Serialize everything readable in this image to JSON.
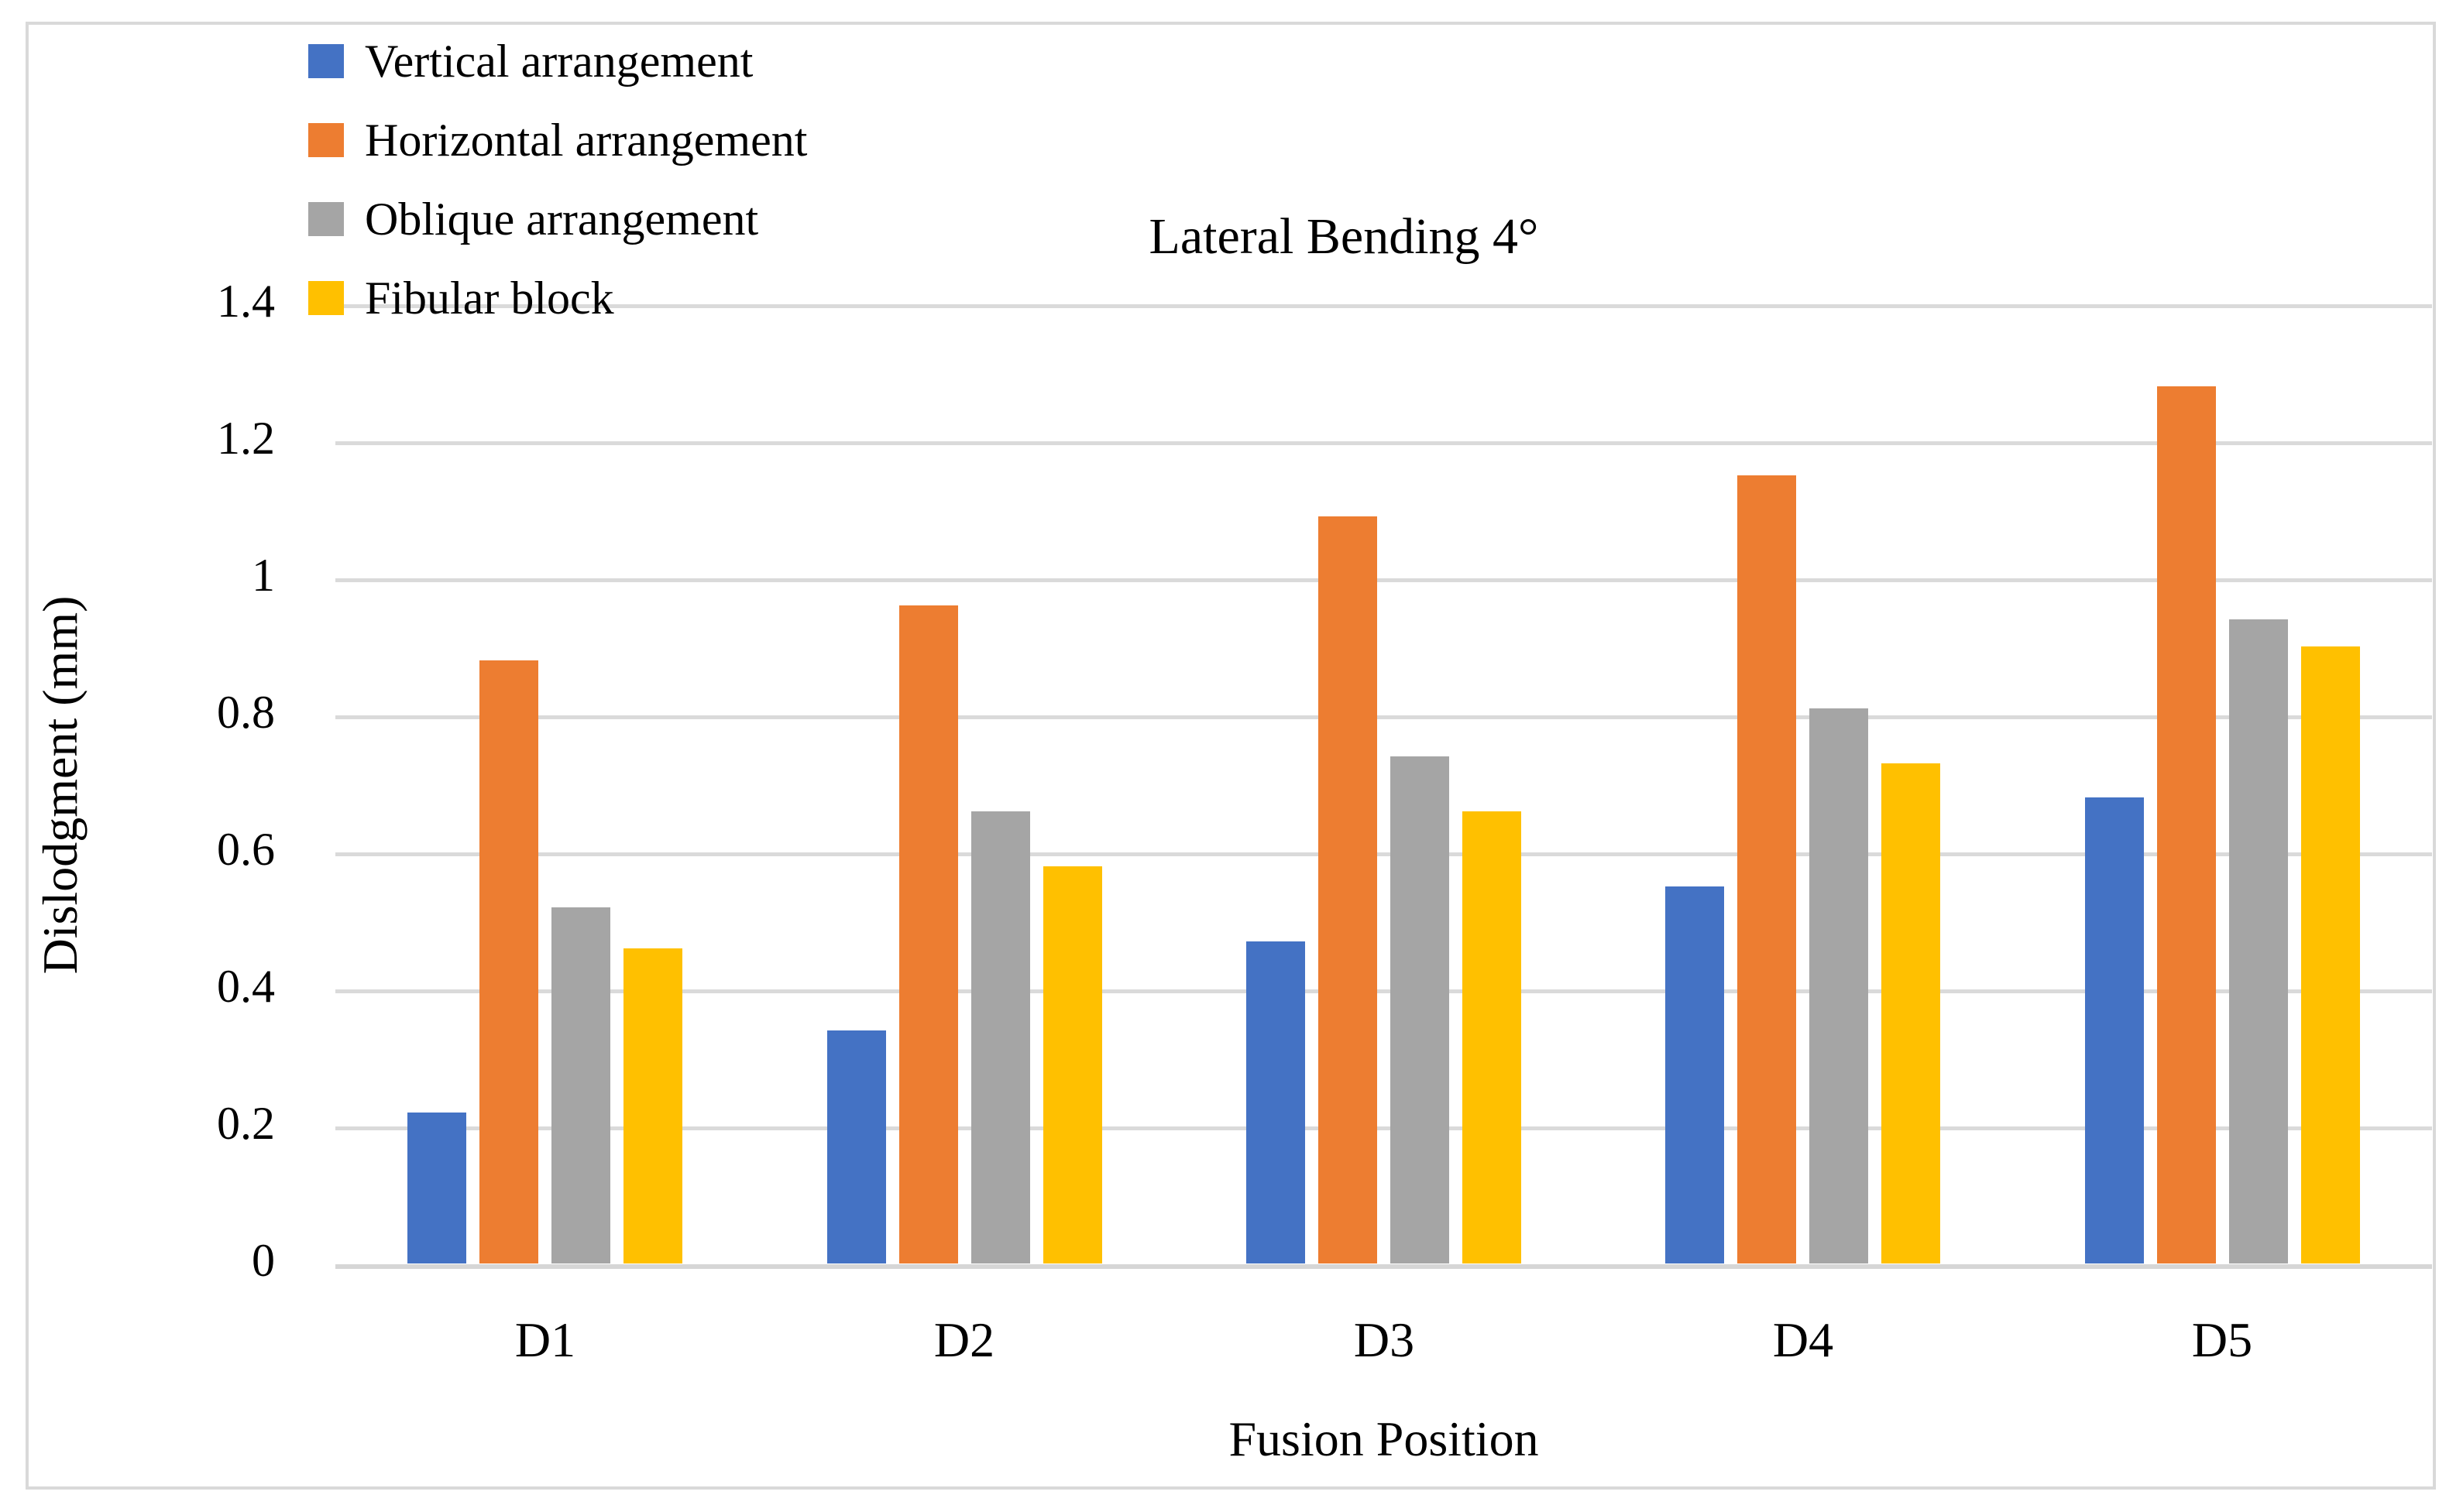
{
  "chart_data": {
    "type": "bar",
    "title": "Lateral Bending 4°",
    "xlabel": "Fusion Position",
    "ylabel": "Dislodgment (mm)",
    "categories": [
      "D1",
      "D2",
      "D3",
      "D4",
      "D5"
    ],
    "series": [
      {
        "name": "Vertical arrangement",
        "color": "#4472C4",
        "values": [
          0.22,
          0.34,
          0.47,
          0.55,
          0.68
        ]
      },
      {
        "name": "Horizontal arrangement",
        "color": "#ED7D31",
        "values": [
          0.88,
          0.96,
          1.09,
          1.15,
          1.28
        ]
      },
      {
        "name": "Oblique arrangement",
        "color": "#A5A5A5",
        "values": [
          0.52,
          0.66,
          0.74,
          0.81,
          0.94
        ]
      },
      {
        "name": "Fibular block",
        "color": "#FFC000",
        "values": [
          0.46,
          0.58,
          0.66,
          0.73,
          0.9
        ]
      }
    ],
    "ylim": [
      0,
      1.4
    ],
    "ytick_step": 0.2,
    "yticks": [
      "0",
      "0.2",
      "0.4",
      "0.6",
      "0.8",
      "1",
      "1.2",
      "1.4"
    ],
    "grid": true,
    "legend_position": "top-left",
    "colors": {
      "gridline": "#dadada",
      "axis_line": "#d6d6d6",
      "frame_border": "#d9d9d9",
      "text": "#000000",
      "background": "#ffffff"
    }
  }
}
